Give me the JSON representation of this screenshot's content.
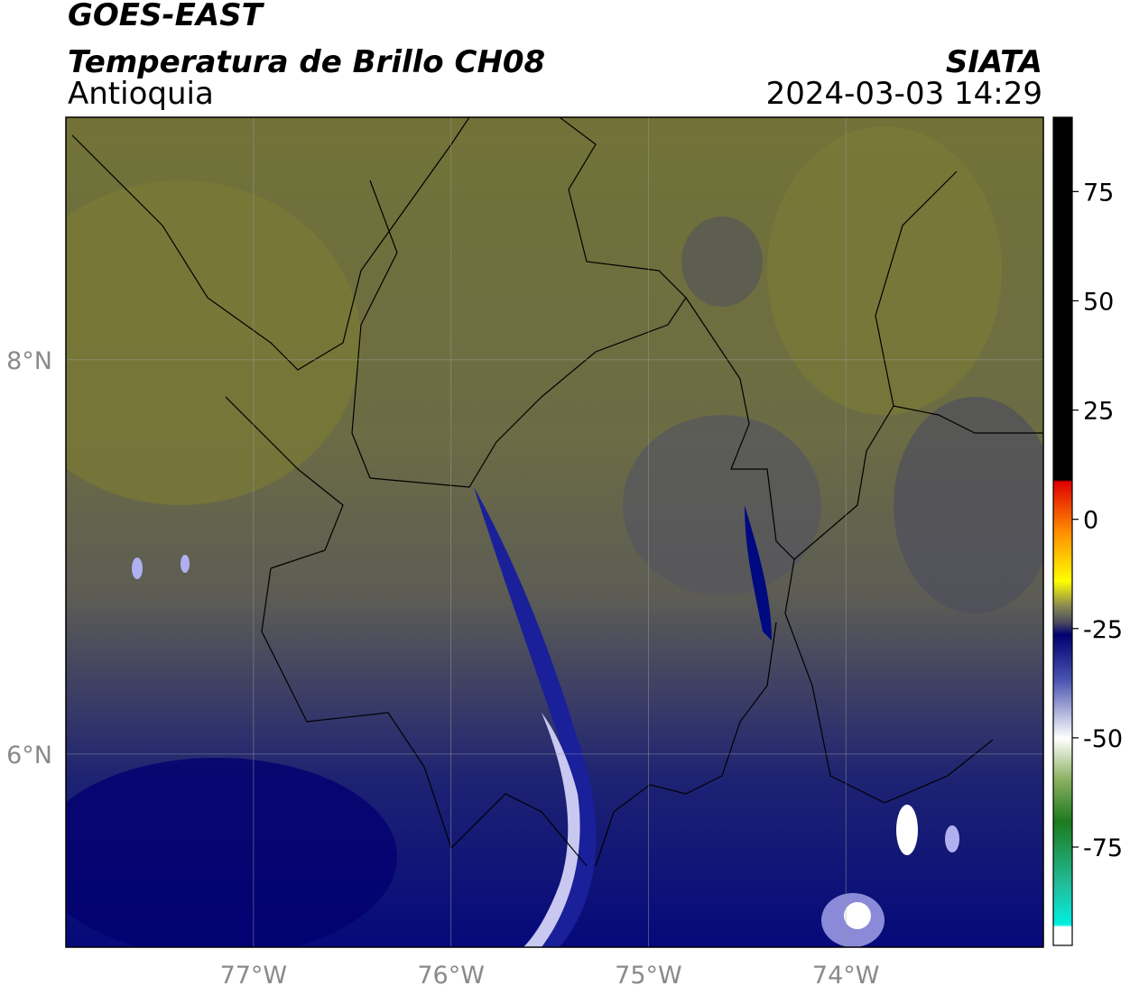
{
  "header": {
    "title": "GOES-EAST",
    "subtitle": "Temperatura de Brillo CH08",
    "region": "Antioquia",
    "source": "SIATA",
    "timestamp": "2024-03-03 14:29"
  },
  "map": {
    "xlim": [
      -77.95,
      -73.0
    ],
    "ylim": [
      5.02,
      9.23
    ],
    "xticks": [
      {
        "value": -77,
        "label": "77°W"
      },
      {
        "value": -76,
        "label": "76°W"
      },
      {
        "value": -75,
        "label": "75°W"
      },
      {
        "value": -74,
        "label": "74°W"
      }
    ],
    "yticks": [
      {
        "value": 8,
        "label": "8°N"
      },
      {
        "value": 6,
        "label": "6°N"
      }
    ],
    "grid": true
  },
  "colorbar": {
    "lim": [
      -97.5,
      92
    ],
    "ticks": [
      75,
      50,
      25,
      0,
      -25,
      -50,
      -75
    ]
  }
}
